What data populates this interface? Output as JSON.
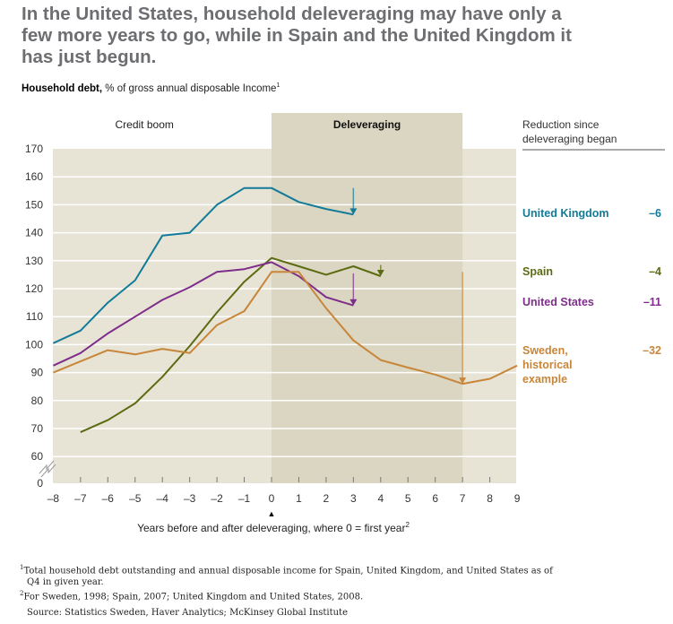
{
  "title": "In the United States, household deleveraging may have only a few more years to go, while in Spain and the United Kingdom it has just begun.",
  "subtitle": {
    "bold": "Household debt,",
    "rest": "% of gross annual disposable Income",
    "sup": "1"
  },
  "chart_data": {
    "type": "line",
    "title": "Household debt, % of gross annual disposable Income",
    "xlabel": "Years before and after deleveraging, where 0 = first year",
    "xlabel_sup": "2",
    "ylabel": "",
    "x": [
      -8,
      -7,
      -6,
      -5,
      -4,
      -3,
      -2,
      -1,
      0,
      1,
      2,
      3,
      4,
      5,
      6,
      7,
      8,
      9
    ],
    "x_ticks": [
      "–8",
      "–7",
      "–6",
      "–5",
      "–4",
      "–3",
      "–2",
      "–1",
      "0",
      "1",
      "2",
      "3",
      "4",
      "5",
      "6",
      "7",
      "8",
      "9"
    ],
    "y_ticks": [
      0,
      60,
      70,
      80,
      90,
      100,
      110,
      120,
      130,
      140,
      150,
      160,
      170
    ],
    "ylim": [
      60,
      170
    ],
    "y_axis_break": true,
    "grid": true,
    "regions": [
      {
        "label": "Credit boom",
        "from": -8,
        "to": 0,
        "bold": false
      },
      {
        "label": "Deleveraging",
        "from": 0,
        "to": 7,
        "bold": true
      }
    ],
    "legend_header": "Reduction since deleveraging began",
    "zero_marker": "▲",
    "series": [
      {
        "name": "United Kingdom",
        "color": "#127b99",
        "reduction": "–6",
        "x": [
          -8,
          -7,
          -6,
          -5,
          -4,
          -3,
          -2,
          -1,
          0,
          1,
          2,
          3
        ],
        "values": [
          100.5,
          105,
          115,
          123,
          139,
          140,
          150,
          156,
          156,
          151,
          148.5,
          146.5
        ],
        "arrow": {
          "x": 3,
          "from": 156,
          "to": 146.5
        },
        "label_value": 146
      },
      {
        "name": "Spain",
        "color": "#5c6b12",
        "reduction": "–4",
        "x": [
          -7,
          -6,
          -5,
          -4,
          -3,
          -2,
          -1,
          0,
          1,
          2,
          3,
          4
        ],
        "values": [
          68.7,
          73,
          79,
          88.5,
          99.5,
          111.5,
          122.5,
          131,
          128,
          125,
          128,
          124.5
        ],
        "arrow": {
          "x": 4,
          "from": 128.5,
          "to": 124.5
        },
        "label_value": 125
      },
      {
        "name": "United States",
        "color": "#7e2e8a",
        "reduction": "–11",
        "x": [
          -8,
          -7,
          -6,
          -5,
          -4,
          -3,
          -2,
          -1,
          0,
          1,
          2,
          3
        ],
        "values": [
          92.5,
          97,
          104,
          110,
          116,
          120.5,
          126,
          127,
          129.5,
          124.5,
          117,
          114
        ],
        "arrow": {
          "x": 3,
          "from": 125.5,
          "to": 114
        },
        "label_value": 114
      },
      {
        "name": "Sweden, historical example",
        "name_lines": [
          "Sweden,",
          "historical",
          "example"
        ],
        "color": "#c78639",
        "reduction": "–32",
        "x": [
          -8,
          -7,
          -6,
          -5,
          -4,
          -3,
          -2,
          -1,
          0,
          1,
          2,
          3,
          4,
          5,
          6,
          7,
          8,
          9
        ],
        "values": [
          90,
          94,
          98,
          96.5,
          98.5,
          97,
          107,
          112,
          126,
          126,
          113,
          101.5,
          94.5,
          91.8,
          89.3,
          86,
          87.8,
          92.5
        ],
        "arrow": {
          "x": 7,
          "from": 126,
          "to": 86
        },
        "label_value": 97
      }
    ]
  },
  "footnotes": [
    {
      "sup": "1",
      "text": "Total household debt outstanding and annual disposable income for Spain, United Kingdom, and United States as of",
      "cont": "Q4 in given year."
    },
    {
      "sup": "2",
      "text": "For Sweden, 1998; Spain, 2007; United Kingdom and United States, 2008."
    }
  ],
  "source": "Source: Statistics Sweden, Haver Analytics; McKinsey Global Institute"
}
